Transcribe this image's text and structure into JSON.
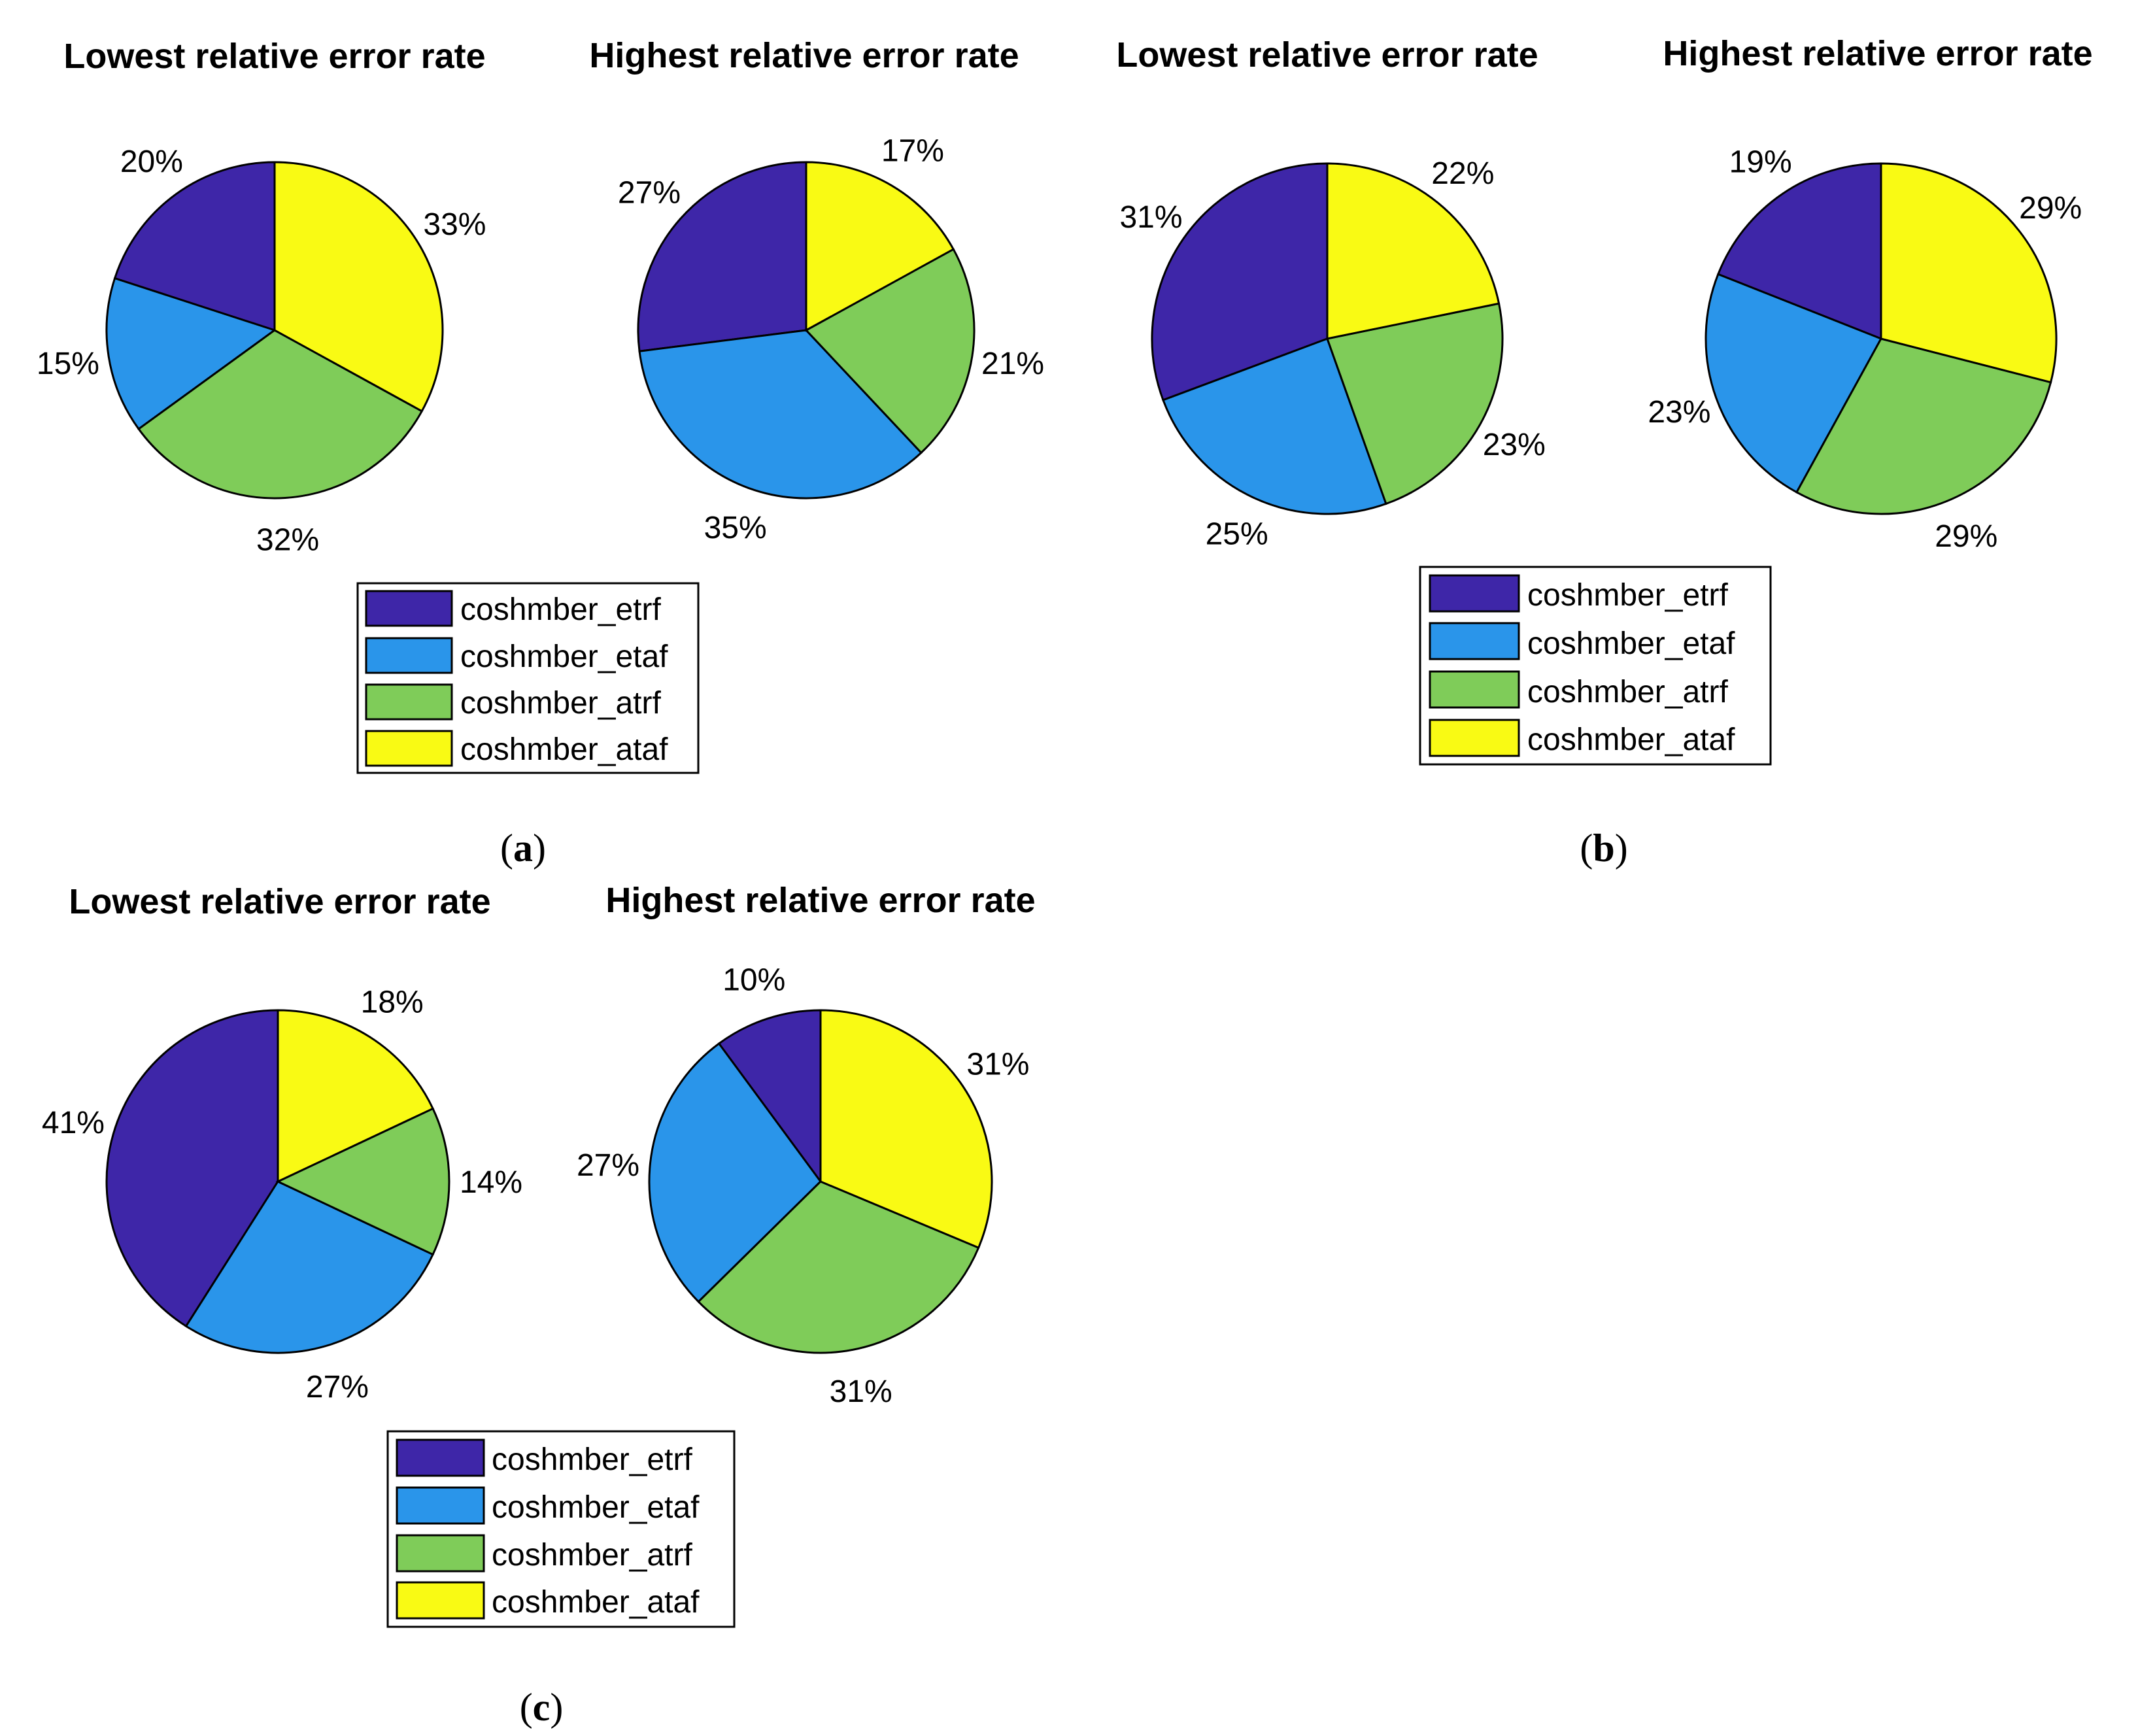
{
  "series_names": [
    "coshmber_etrf",
    "coshmber_etaf",
    "coshmber_atrf",
    "coshmber_ataf"
  ],
  "colors": {
    "coshmber_etrf": "#3E26A8",
    "coshmber_etaf": "#2A95EA",
    "coshmber_atrf": "#7FCC59",
    "coshmber_ataf": "#F9FA14"
  },
  "panels": [
    {
      "label": "(a)",
      "label_parts": {
        "open": "(",
        "letter": "a",
        "close": ")"
      },
      "legend": [
        "coshmber_etrf",
        "coshmber_etaf",
        "coshmber_atrf",
        "coshmber_ataf"
      ]
    },
    {
      "label": "(b)",
      "label_parts": {
        "open": "(",
        "letter": "b",
        "close": ")"
      },
      "legend": [
        "coshmber_etrf",
        "coshmber_etaf",
        "coshmber_atrf",
        "coshmber_ataf"
      ]
    },
    {
      "label": "(c)",
      "label_parts": {
        "open": "(",
        "letter": "c",
        "close": ")"
      },
      "legend": [
        "coshmber_etrf",
        "coshmber_etaf",
        "coshmber_atrf",
        "coshmber_ataf"
      ]
    }
  ],
  "chart_data": [
    {
      "panel": "a",
      "type": "pie",
      "title": "Lowest relative error rate",
      "labels": [
        "coshmber_etrf",
        "coshmber_etaf",
        "coshmber_atrf",
        "coshmber_ataf"
      ],
      "values": [
        20,
        15,
        32,
        33
      ],
      "value_labels": [
        "20%",
        "15%",
        "32%",
        "33%"
      ]
    },
    {
      "panel": "a",
      "type": "pie",
      "title": "Highest relative error rate",
      "labels": [
        "coshmber_etrf",
        "coshmber_etaf",
        "coshmber_atrf",
        "coshmber_ataf"
      ],
      "values": [
        27,
        35,
        21,
        17
      ],
      "value_labels": [
        "27%",
        "35%",
        "21%",
        "17%"
      ]
    },
    {
      "panel": "b",
      "type": "pie",
      "title": "Lowest relative error rate",
      "labels": [
        "coshmber_etrf",
        "coshmber_etaf",
        "coshmber_atrf",
        "coshmber_ataf"
      ],
      "values": [
        31,
        25,
        23,
        22
      ],
      "value_labels": [
        "31%",
        "25%",
        "23%",
        "22%"
      ]
    },
    {
      "panel": "b",
      "type": "pie",
      "title": "Highest relative error rate",
      "labels": [
        "coshmber_etrf",
        "coshmber_etaf",
        "coshmber_atrf",
        "coshmber_ataf"
      ],
      "values": [
        19,
        23,
        29,
        29
      ],
      "value_labels": [
        "19%",
        "23%",
        "29%",
        "29%"
      ]
    },
    {
      "panel": "c",
      "type": "pie",
      "title": "Lowest relative error rate",
      "labels": [
        "coshmber_etrf",
        "coshmber_etaf",
        "coshmber_atrf",
        "coshmber_ataf"
      ],
      "values": [
        41,
        27,
        14,
        18
      ],
      "value_labels": [
        "41%",
        "27%",
        "14%",
        "18%"
      ]
    },
    {
      "panel": "c",
      "type": "pie",
      "title": "Highest relative error rate",
      "labels": [
        "coshmber_etrf",
        "coshmber_etaf",
        "coshmber_atrf",
        "coshmber_ataf"
      ],
      "values": [
        10,
        27,
        31,
        31
      ],
      "value_labels": [
        "10%",
        "27%",
        "31%",
        "31%"
      ]
    }
  ]
}
